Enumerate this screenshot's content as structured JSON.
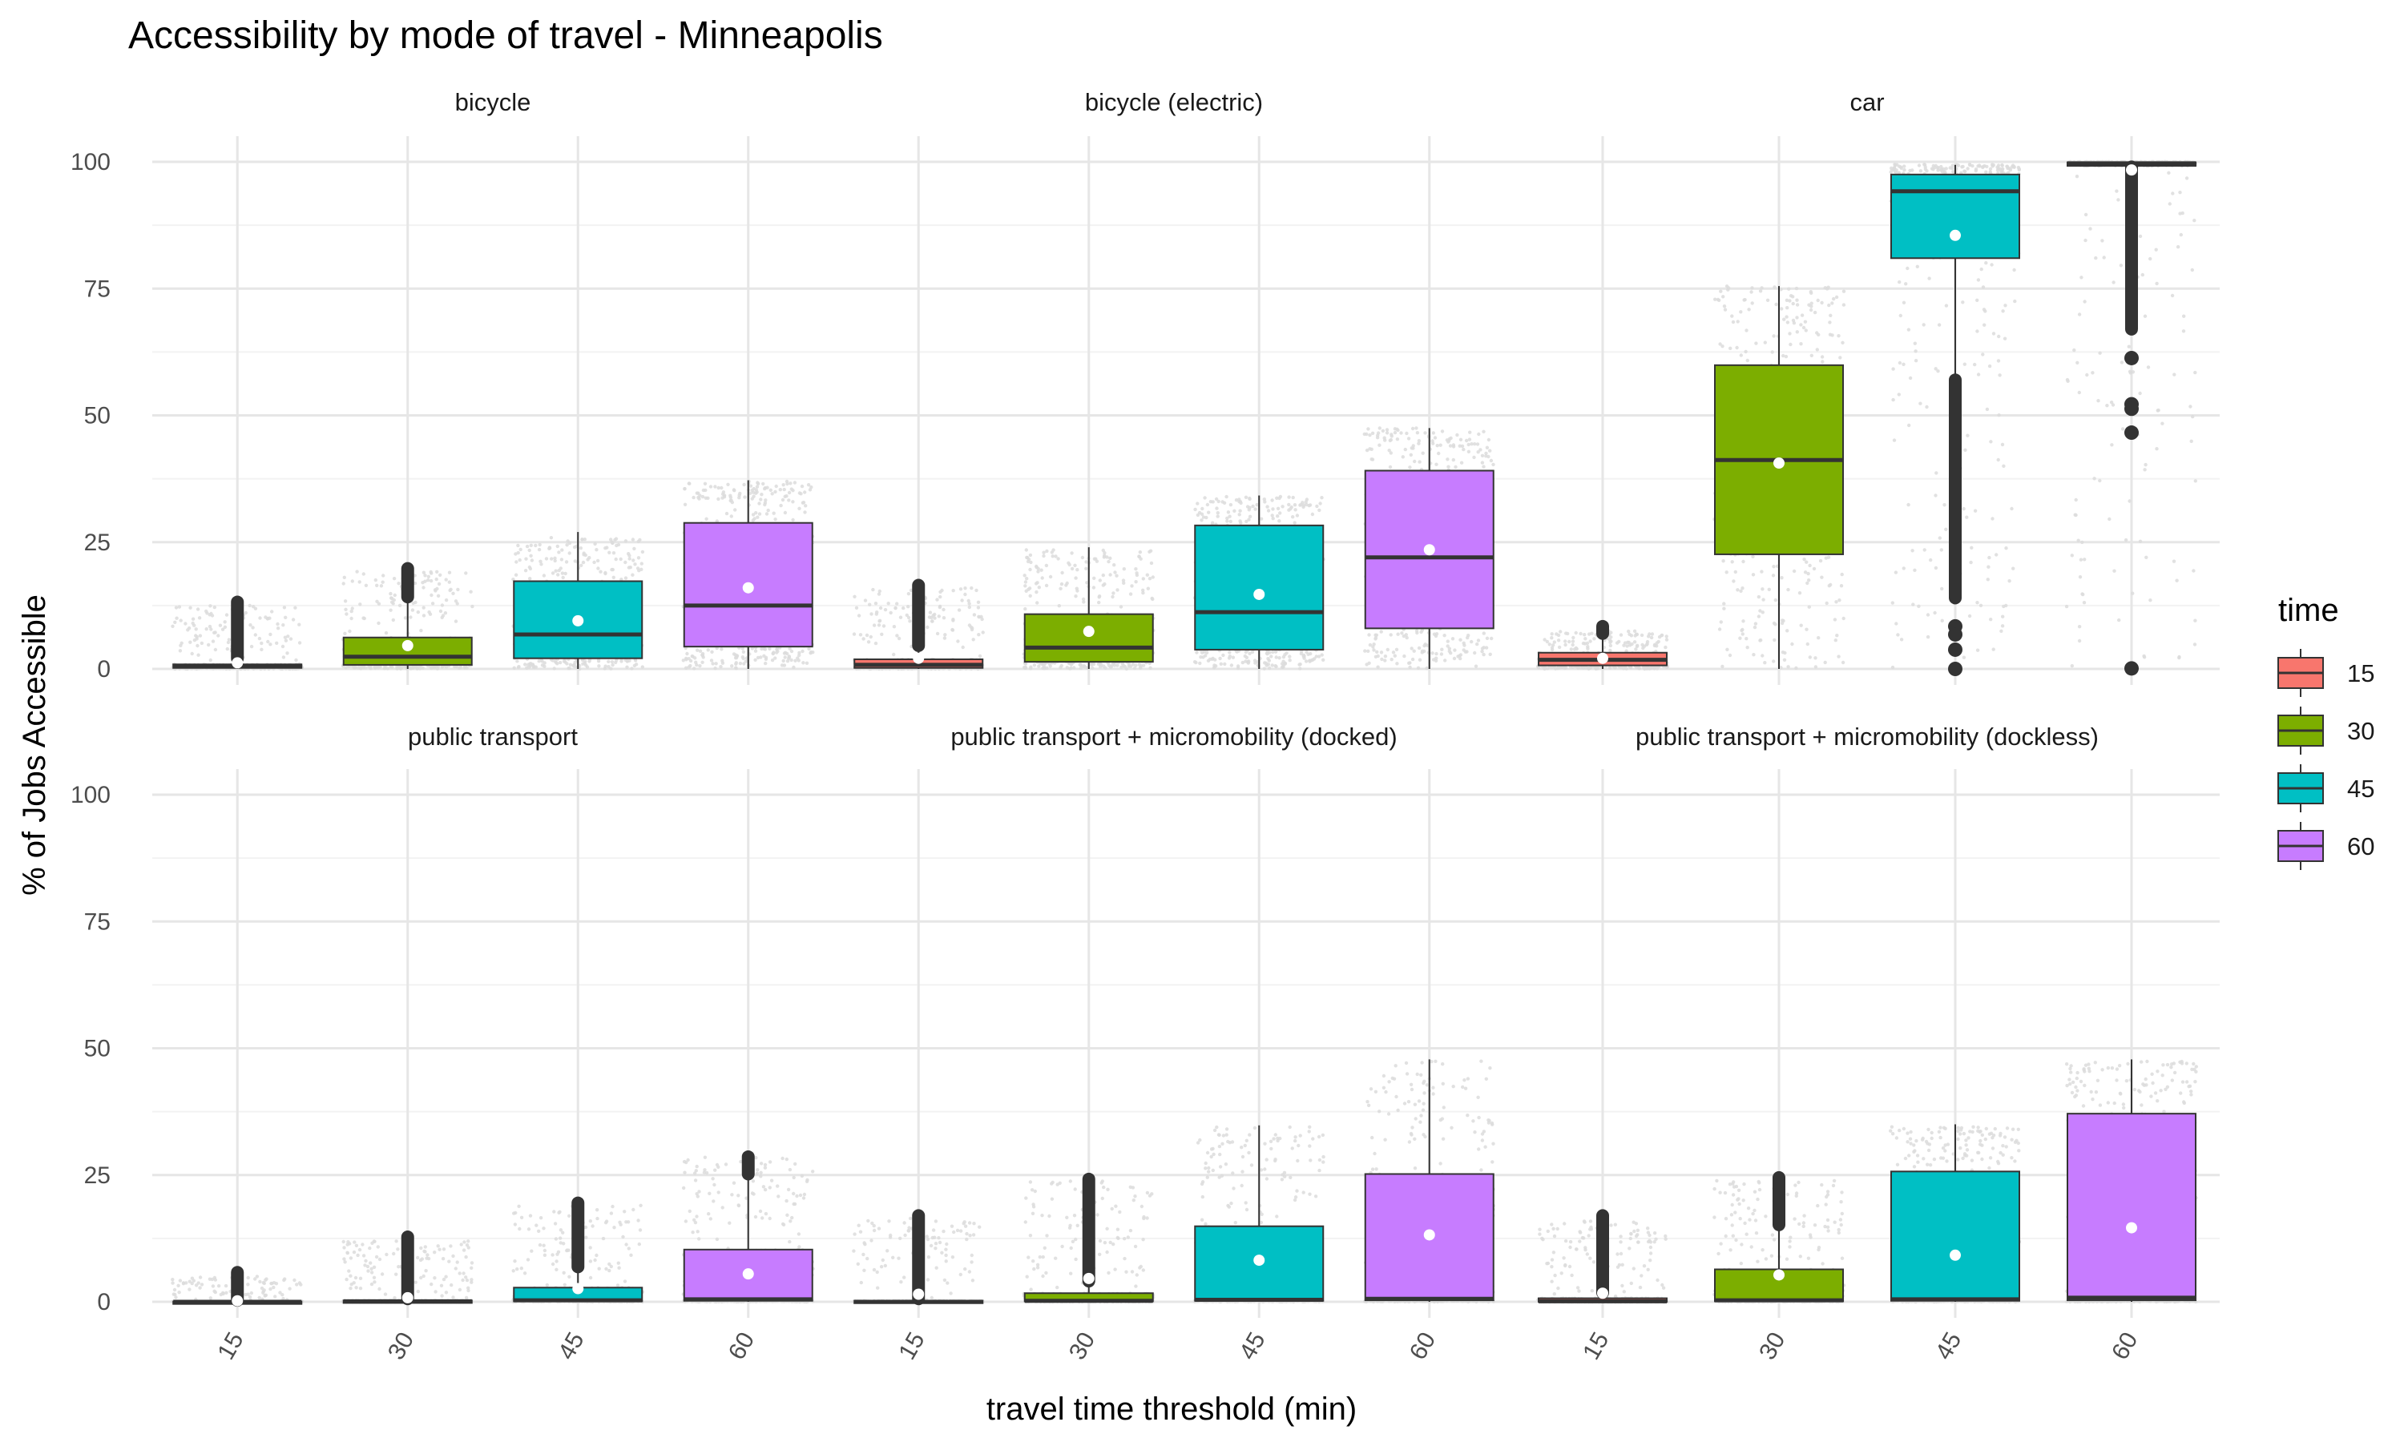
{
  "chart_data": {
    "type": "boxplot",
    "title": "Accessibility by mode of travel - Minneapolis",
    "xlabel": "travel time threshold (min)",
    "ylabel": "% of Jobs Accessible",
    "ylim": [
      0,
      100
    ],
    "yticks": [
      0,
      25,
      50,
      75,
      100
    ],
    "categories": [
      "15",
      "30",
      "45",
      "60"
    ],
    "grid": true,
    "legend": {
      "title": "time",
      "position": "right",
      "entries": [
        {
          "label": "15",
          "color": "#F8766D"
        },
        {
          "label": "30",
          "color": "#7CAE00"
        },
        {
          "label": "45",
          "color": "#00BFC4"
        },
        {
          "label": "60",
          "color": "#C77CFF"
        }
      ]
    },
    "panels": [
      {
        "name": "bicycle",
        "boxes": [
          {
            "x": "15",
            "q1": 0.2,
            "median": 0.5,
            "q3": 0.9,
            "wlo": 0,
            "whi": 2.0,
            "mean": 1.2,
            "jitter_max": 12.5,
            "outliers": [
              [
                2.1,
                13.2
              ]
            ],
            "outlier_points": []
          },
          {
            "x": "30",
            "q1": 0.8,
            "median": 2.4,
            "q3": 6.2,
            "wlo": 0,
            "whi": 14.0,
            "mean": 4.6,
            "jitter_max": 19.2,
            "outliers": [
              [
                14.2,
                19.8
              ]
            ],
            "outlier_points": []
          },
          {
            "x": "45",
            "q1": 2.1,
            "median": 6.8,
            "q3": 17.3,
            "wlo": 0,
            "whi": 27.0,
            "mean": 9.5,
            "jitter_max": 26.0,
            "outliers": [],
            "outlier_points": []
          },
          {
            "x": "60",
            "q1": 4.4,
            "median": 12.5,
            "q3": 28.8,
            "wlo": 0,
            "whi": 37.2,
            "mean": 16.0,
            "jitter_max": 37.0,
            "outliers": [],
            "outlier_points": []
          }
        ]
      },
      {
        "name": "bicycle (electric)",
        "boxes": [
          {
            "x": "15",
            "q1": 0.2,
            "median": 0.8,
            "q3": 1.9,
            "wlo": 0,
            "whi": 4.5,
            "mean": 2.1,
            "jitter_max": 16.0,
            "outliers": [
              [
                4.6,
                16.5
              ]
            ],
            "outlier_points": []
          },
          {
            "x": "30",
            "q1": 1.4,
            "median": 4.2,
            "q3": 10.8,
            "wlo": 0,
            "whi": 24.0,
            "mean": 7.4,
            "jitter_max": 23.5,
            "outliers": [],
            "outlier_points": []
          },
          {
            "x": "45",
            "q1": 3.8,
            "median": 11.2,
            "q3": 28.3,
            "wlo": 0,
            "whi": 34.2,
            "mean": 14.7,
            "jitter_max": 34.0,
            "outliers": [],
            "outlier_points": []
          },
          {
            "x": "60",
            "q1": 8.0,
            "median": 22.0,
            "q3": 39.1,
            "wlo": 0,
            "whi": 47.5,
            "mean": 23.5,
            "jitter_max": 47.5,
            "outliers": [],
            "outlier_points": []
          }
        ]
      },
      {
        "name": "car",
        "boxes": [
          {
            "x": "15",
            "q1": 0.7,
            "median": 1.8,
            "q3": 3.2,
            "wlo": 0,
            "whi": 6.8,
            "mean": 2.1,
            "jitter_max": 7.5,
            "outliers": [
              [
                7.0,
                8.4
              ]
            ],
            "outlier_points": []
          },
          {
            "x": "30",
            "q1": 22.6,
            "median": 41.2,
            "q3": 59.9,
            "wlo": 0,
            "whi": 75.5,
            "mean": 40.6,
            "jitter_max": 75.5,
            "outliers": [],
            "outlier_points": []
          },
          {
            "x": "45",
            "q1": 81.0,
            "median": 94.2,
            "q3": 97.5,
            "wlo": 57.5,
            "whi": 99.4,
            "mean": 85.5,
            "jitter_max": 99.5,
            "outliers": [
              [
                14.0,
                57.0
              ]
            ],
            "outlier_points": [
              8.4,
              6.8,
              3.8,
              0
            ]
          },
          {
            "x": "60",
            "q1": 99.2,
            "median": 99.7,
            "q3": 99.9,
            "wlo": 99.0,
            "whi": 100,
            "mean": 98.4,
            "jitter_max": 100,
            "outliers": [
              [
                67.0,
                99.0
              ]
            ],
            "outlier_points": [
              61.3,
              52.2,
              51.3,
              46.6,
              0.1
            ]
          }
        ]
      },
      {
        "name": "public transport",
        "boxes": [
          {
            "x": "15",
            "q1": 0.0,
            "median": 0.0,
            "q3": 0.05,
            "wlo": 0,
            "whi": 0.1,
            "mean": 0.2,
            "jitter_max": 5.0,
            "outliers": [
              [
                0.3,
                5.8
              ]
            ],
            "outlier_points": []
          },
          {
            "x": "30",
            "q1": 0.0,
            "median": 0.1,
            "q3": 0.25,
            "wlo": 0,
            "whi": 0.5,
            "mean": 0.8,
            "jitter_max": 12.0,
            "outliers": [
              [
                0.6,
                12.8
              ]
            ],
            "outlier_points": []
          },
          {
            "x": "45",
            "q1": 0.1,
            "median": 0.3,
            "q3": 2.8,
            "wlo": 0,
            "whi": 6.8,
            "mean": 2.6,
            "jitter_max": 19.0,
            "outliers": [
              [
                6.9,
                19.5
              ]
            ],
            "outlier_points": []
          },
          {
            "x": "60",
            "q1": 0.2,
            "median": 0.5,
            "q3": 10.3,
            "wlo": 0,
            "whi": 25.0,
            "mean": 5.5,
            "jitter_max": 28.5,
            "outliers": [
              [
                25.2,
                28.6
              ]
            ],
            "outlier_points": []
          }
        ]
      },
      {
        "name": "public transport + micromobility (docked)",
        "boxes": [
          {
            "x": "15",
            "q1": 0.0,
            "median": 0.0,
            "q3": 0.2,
            "wlo": 0,
            "whi": 0.5,
            "mean": 1.5,
            "jitter_max": 16.5,
            "outliers": [
              [
                0.6,
                17.0
              ]
            ],
            "outlier_points": []
          },
          {
            "x": "30",
            "q1": 0.1,
            "median": 0.2,
            "q3": 1.7,
            "wlo": 0,
            "whi": 4.0,
            "mean": 4.6,
            "jitter_max": 24.0,
            "outliers": [
              [
                4.1,
                24.2
              ]
            ],
            "outlier_points": []
          },
          {
            "x": "45",
            "q1": 0.2,
            "median": 0.4,
            "q3": 14.9,
            "wlo": 0,
            "whi": 34.8,
            "mean": 8.2,
            "jitter_max": 34.5,
            "outliers": [],
            "outlier_points": []
          },
          {
            "x": "60",
            "q1": 0.3,
            "median": 0.6,
            "q3": 25.2,
            "wlo": 0,
            "whi": 47.8,
            "mean": 13.2,
            "jitter_max": 47.5,
            "outliers": [],
            "outlier_points": []
          }
        ]
      },
      {
        "name": "public transport + micromobility (dockless)",
        "boxes": [
          {
            "x": "15",
            "q1": 0.0,
            "median": 0.1,
            "q3": 0.7,
            "wlo": 0,
            "whi": 1.7,
            "mean": 1.7,
            "jitter_max": 16.0,
            "outliers": [
              [
                1.8,
                17.0
              ]
            ],
            "outlier_points": []
          },
          {
            "x": "30",
            "q1": 0.1,
            "median": 0.3,
            "q3": 6.4,
            "wlo": 0,
            "whi": 15.0,
            "mean": 5.3,
            "jitter_max": 24.0,
            "outliers": [
              [
                15.2,
                24.5
              ]
            ],
            "outlier_points": []
          },
          {
            "x": "45",
            "q1": 0.2,
            "median": 0.5,
            "q3": 25.7,
            "wlo": 0,
            "whi": 35.0,
            "mean": 9.2,
            "jitter_max": 34.5,
            "outliers": [],
            "outlier_points": []
          },
          {
            "x": "60",
            "q1": 0.3,
            "median": 0.8,
            "q3": 37.1,
            "wlo": 0,
            "whi": 47.8,
            "mean": 14.6,
            "jitter_max": 47.5,
            "outliers": [],
            "outlier_points": []
          }
        ]
      }
    ]
  }
}
